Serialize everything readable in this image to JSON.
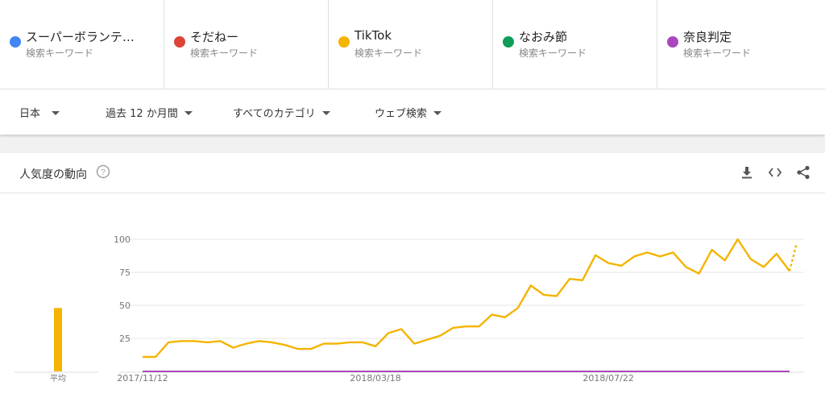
{
  "terms": [
    {
      "name": "スーパーボランテ…",
      "sub": "検索キーワード",
      "color": "#4285f4"
    },
    {
      "name": "そだねー",
      "sub": "検索キーワード",
      "color": "#db4437"
    },
    {
      "name": "TikTok",
      "sub": "検索キーワード",
      "color": "#f4b400"
    },
    {
      "name": "なおみ節",
      "sub": "検索キーワード",
      "color": "#0f9d58"
    },
    {
      "name": "奈良判定",
      "sub": "検索キーワード",
      "color": "#ab47bc"
    }
  ],
  "filters": {
    "region": "日本",
    "period": "過去 12 か月間",
    "category": "すべてのカテゴリ",
    "search_type": "ウェブ検索"
  },
  "card": {
    "title": "人気度の動向",
    "help_icon": "help-circle-icon",
    "actions": [
      "download-icon",
      "embed-code-icon",
      "share-icon"
    ]
  },
  "chart_data": {
    "type": "line",
    "ylim": [
      0,
      100
    ],
    "yticks": [
      25,
      50,
      75,
      100
    ],
    "xticks": [
      {
        "label": "2017/11/12",
        "index": 0
      },
      {
        "label": "2018/03/18",
        "index": 18
      },
      {
        "label": "2018/07/22",
        "index": 36
      }
    ],
    "series": [
      {
        "name": "TikTok",
        "color": "#f4b400",
        "values": [
          11,
          11,
          22,
          23,
          23,
          22,
          23,
          18,
          21,
          23,
          22,
          20,
          17,
          17,
          21,
          21,
          22,
          22,
          19,
          29,
          32,
          21,
          24,
          27,
          33,
          34,
          34,
          43,
          41,
          48,
          65,
          58,
          57,
          70,
          69,
          88,
          82,
          80,
          87,
          90,
          87,
          90,
          79,
          74,
          92,
          84,
          100,
          85,
          79,
          89,
          76
        ],
        "partial_last": 97
      },
      {
        "name": "奈良判定",
        "color": "#ab47bc",
        "values": [
          0,
          0,
          0,
          0,
          0,
          0,
          0,
          0,
          0,
          0,
          0,
          0,
          0,
          0,
          0,
          0,
          0,
          0,
          0,
          0,
          0,
          0,
          0,
          0,
          0,
          0,
          0,
          0,
          0,
          0,
          0,
          0,
          0,
          0,
          0,
          0,
          0,
          0,
          0,
          0,
          0,
          0,
          0,
          0,
          0,
          0,
          0,
          0,
          0,
          0,
          0
        ]
      }
    ],
    "average": {
      "label": "平均",
      "value": 48,
      "color": "#f4b400"
    }
  }
}
